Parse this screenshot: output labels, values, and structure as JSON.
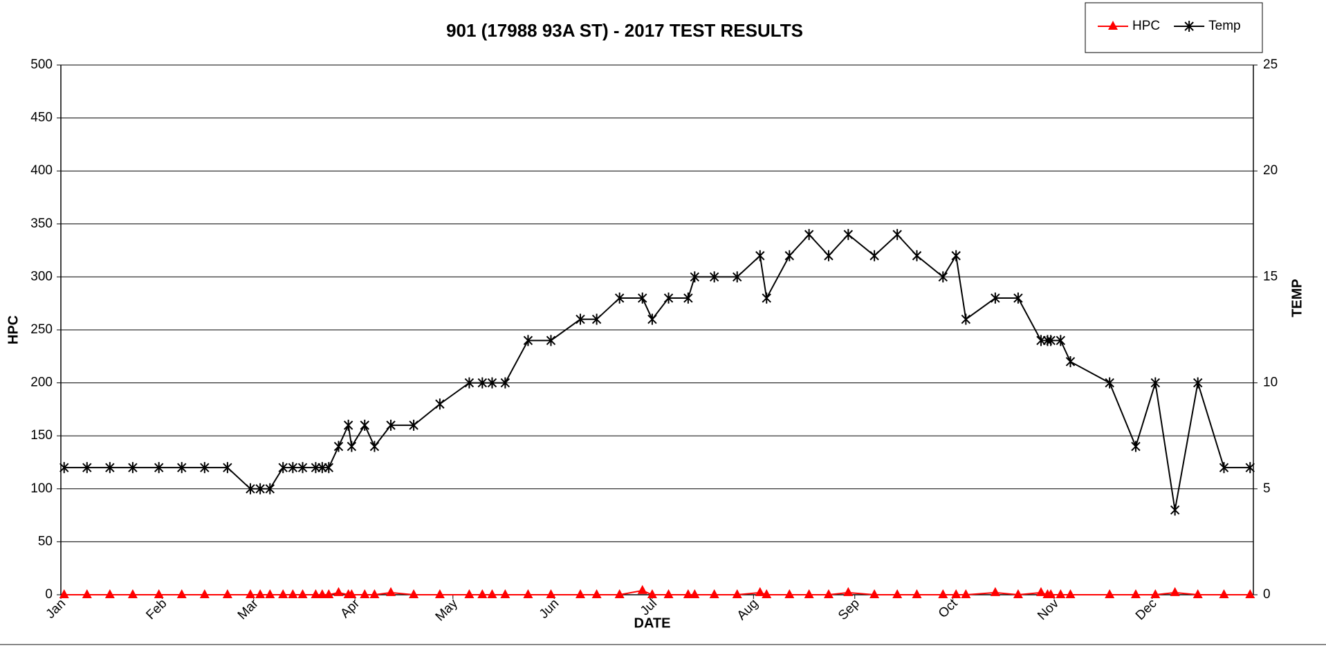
{
  "chart_data": {
    "type": "line",
    "title": "901 (17988 93A ST) - 2017 TEST RESULTS",
    "xlabel": "DATE",
    "ylabel": "HPC",
    "y2label": "TEMP",
    "x": [
      1,
      8,
      15,
      22,
      30,
      37,
      44,
      51,
      58,
      61,
      64,
      68,
      71,
      74,
      78,
      80,
      82,
      85,
      88,
      89,
      93,
      96,
      101,
      108,
      116,
      125,
      129,
      132,
      136,
      143,
      150,
      159,
      164,
      171,
      178,
      181,
      186,
      192,
      194,
      200,
      207,
      214,
      216,
      223,
      229,
      235,
      241,
      249,
      256,
      262,
      270,
      274,
      277,
      286,
      293,
      300,
      302,
      303,
      306,
      309,
      321,
      329,
      335,
      341,
      348,
      356,
      364
    ],
    "xlim": [
      0,
      365
    ],
    "xticks": [
      {
        "value": 0,
        "label": "Jan"
      },
      {
        "value": 31,
        "label": "Feb"
      },
      {
        "value": 59,
        "label": "Mar"
      },
      {
        "value": 90,
        "label": "Apr"
      },
      {
        "value": 120,
        "label": "May"
      },
      {
        "value": 151,
        "label": "Jun"
      },
      {
        "value": 181,
        "label": "Jul"
      },
      {
        "value": 212,
        "label": "Aug"
      },
      {
        "value": 243,
        "label": "Sep"
      },
      {
        "value": 273,
        "label": "Oct"
      },
      {
        "value": 304,
        "label": "Nov"
      },
      {
        "value": 334,
        "label": "Dec"
      }
    ],
    "ylim": [
      0,
      500
    ],
    "yticks": [
      0,
      50,
      100,
      150,
      200,
      250,
      300,
      350,
      400,
      450,
      500
    ],
    "y2lim": [
      0,
      25
    ],
    "y2ticks": [
      0,
      5,
      10,
      15,
      20,
      25
    ],
    "grid": true,
    "legend": "top-right",
    "series": [
      {
        "name": "HPC",
        "color": "#ff0000",
        "marker": "triangle",
        "values": [
          0,
          0,
          0,
          0,
          0,
          0,
          0,
          0,
          0,
          0,
          0,
          0,
          0,
          0,
          0,
          0,
          0,
          2,
          0,
          0,
          0,
          0,
          2,
          0,
          0,
          0,
          0,
          0,
          0,
          0,
          0,
          0,
          0,
          0,
          4,
          0,
          0,
          0,
          0,
          0,
          0,
          2,
          0,
          0,
          0,
          0,
          2,
          0,
          0,
          0,
          0,
          0,
          0,
          2,
          0,
          2,
          0,
          0,
          0,
          0,
          0,
          0,
          0,
          2,
          0,
          0,
          0
        ]
      },
      {
        "name": "Temp",
        "color": "#000000",
        "marker": "asterisk",
        "axis": "y2",
        "values": [
          6,
          6,
          6,
          6,
          6,
          6,
          6,
          6,
          5,
          5,
          5,
          6,
          6,
          6,
          6,
          6,
          6,
          7,
          8,
          7,
          8,
          7,
          8,
          8,
          9,
          10,
          10,
          10,
          10,
          12,
          12,
          13,
          13,
          14,
          14,
          13,
          14,
          14,
          15,
          15,
          15,
          16,
          14,
          16,
          17,
          16,
          17,
          16,
          17,
          16,
          15,
          16,
          13,
          14,
          14,
          12,
          12,
          12,
          12,
          11,
          10,
          7,
          10,
          4,
          10,
          6,
          6
        ]
      }
    ]
  }
}
